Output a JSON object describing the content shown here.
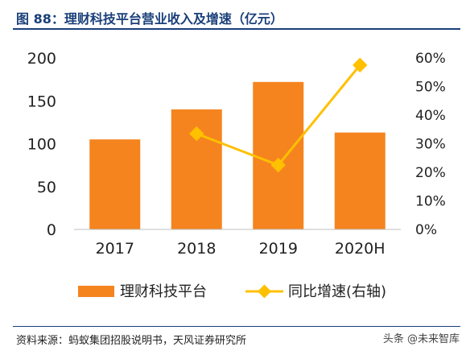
{
  "header": {
    "title": "图 88：理财科技平台营业收入及增速（亿元）"
  },
  "footer": {
    "source": "资料来源：蚂蚁集团招股说明书，天风证券研究所",
    "watermark": "头条 @未来智库"
  },
  "chart_data": {
    "type": "bar",
    "categories": [
      "2017",
      "2018",
      "2019",
      "2020H"
    ],
    "series": [
      {
        "name": "理财科技平台",
        "type": "bar",
        "axis": "left",
        "values": [
          105,
          140,
          172,
          113
        ],
        "color": "#f5841f"
      },
      {
        "name": "同比增速(右轴)",
        "type": "line",
        "axis": "right",
        "values": [
          null,
          33.5,
          22.5,
          57.5
        ],
        "color": "#ffc000"
      }
    ],
    "y_left": {
      "ticks": [
        "0",
        "50",
        "100",
        "150",
        "200"
      ],
      "ylim": [
        0,
        200
      ]
    },
    "y_right": {
      "ticks": [
        "0%",
        "10%",
        "20%",
        "30%",
        "40%",
        "50%",
        "60%"
      ],
      "ylim": [
        0,
        60
      ]
    },
    "grid": false,
    "legend_position": "bottom"
  }
}
